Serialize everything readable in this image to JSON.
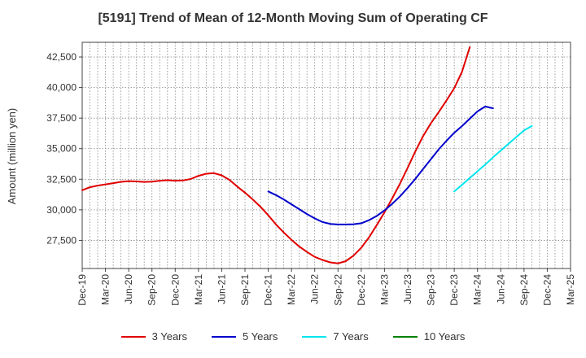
{
  "chart_data": {
    "type": "line",
    "title": "[5191]  Trend of Mean of 12-Month Moving Sum of Operating CF",
    "xlabel": "",
    "ylabel": "Amount (million yen)",
    "ylim": [
      25200,
      43700
    ],
    "yticks": [
      27500,
      30000,
      32500,
      35000,
      37500,
      40000,
      42500
    ],
    "ytick_labels": [
      "27,500",
      "30,000",
      "32,500",
      "35,000",
      "37,500",
      "40,000",
      "42,500"
    ],
    "xtick_labels": [
      "Dec-19",
      "Mar-20",
      "Jun-20",
      "Sep-20",
      "Dec-20",
      "Mar-21",
      "Jun-21",
      "Sep-21",
      "Dec-21",
      "Mar-22",
      "Jun-22",
      "Sep-22",
      "Dec-22",
      "Mar-23",
      "Jun-23",
      "Sep-23",
      "Dec-23",
      "Mar-24",
      "Jun-24",
      "Sep-24",
      "Dec-24",
      "Mar-25"
    ],
    "series": [
      {
        "name": "3 Years",
        "color": "#e00000",
        "start_index": 0,
        "values": [
          31600,
          31850,
          31980,
          32080,
          32180,
          32290,
          32350,
          32320,
          32280,
          32300,
          32380,
          32420,
          32380,
          32400,
          32520,
          32780,
          32950,
          33000,
          32820,
          32450,
          31900,
          31400,
          30850,
          30250,
          29550,
          28800,
          28150,
          27550,
          27000,
          26550,
          26150,
          25900,
          25700,
          25620,
          25800,
          26250,
          26900,
          27750,
          28750,
          29800,
          30950,
          32150,
          33450,
          34800,
          36050,
          37100,
          38000,
          38950,
          39950,
          41300,
          43300
        ]
      },
      {
        "name": "5 Years",
        "color": "#0000cc",
        "start_index": 24,
        "values": [
          31500,
          31200,
          30850,
          30450,
          30050,
          29650,
          29300,
          29000,
          28850,
          28800,
          28800,
          28820,
          28900,
          29150,
          29500,
          29950,
          30500,
          31100,
          31800,
          32550,
          33350,
          34150,
          34950,
          35650,
          36300,
          36850,
          37450,
          38050,
          38450,
          38300
        ]
      },
      {
        "name": "7 Years",
        "color": "#00e5ee",
        "start_index": 48,
        "values": [
          31500,
          32050,
          32600,
          33150,
          33700,
          34300,
          34850,
          35400,
          35950,
          36500,
          36850
        ]
      },
      {
        "name": "10 Years",
        "color": "#008000",
        "start_index": 0,
        "values": []
      }
    ]
  }
}
